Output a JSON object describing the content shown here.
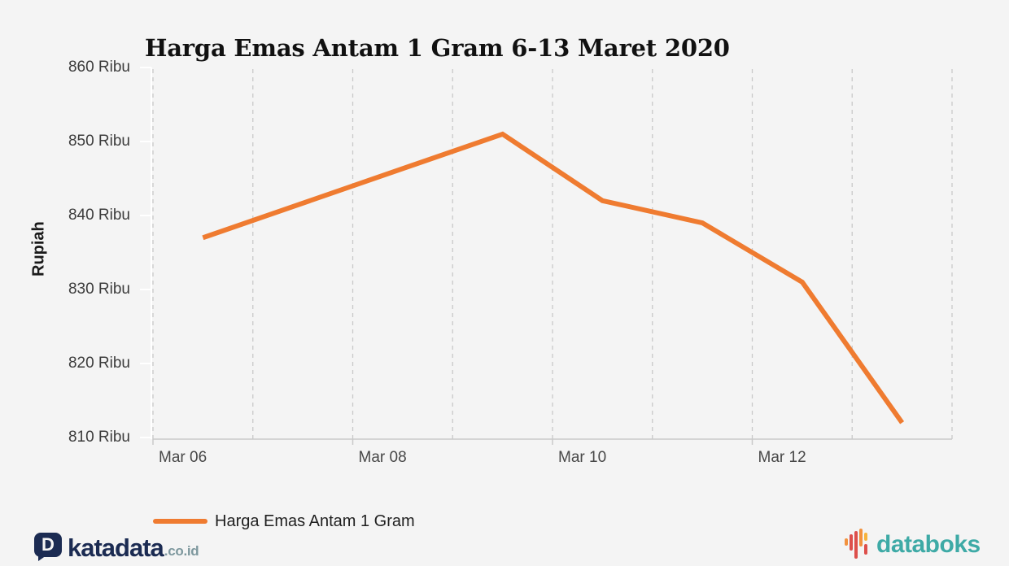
{
  "chart_data": {
    "type": "line",
    "title": "Harga Emas Antam 1 Gram 6-13 Maret 2020",
    "xlabel": "",
    "ylabel": "Rupiah",
    "y_unit": "Ribu",
    "ylim": [
      810,
      860
    ],
    "y_ticks": [
      {
        "value": 860,
        "label": "860 Ribu"
      },
      {
        "value": 850,
        "label": "850 Ribu"
      },
      {
        "value": 840,
        "label": "840 Ribu"
      },
      {
        "value": 830,
        "label": "830 Ribu"
      },
      {
        "value": 820,
        "label": "820 Ribu"
      },
      {
        "value": 810,
        "label": "810 Ribu"
      }
    ],
    "x_tick_labels": [
      "Mar 06",
      "Mar 08",
      "Mar 10",
      "Mar 12"
    ],
    "x_range_days": [
      6,
      13
    ],
    "grid": "vertical dashed gridline per day, no horizontal gridlines",
    "legend_position": "bottom-left",
    "series": [
      {
        "name": "Harga Emas Antam 1 Gram",
        "color": "#EF7B30",
        "points": [
          {
            "x": "Mar 06",
            "day": 6,
            "value": 837
          },
          {
            "x": "Mar 09",
            "day": 9,
            "value": 851
          },
          {
            "x": "Mar 10",
            "day": 10,
            "value": 842
          },
          {
            "x": "Mar 11",
            "day": 11,
            "value": 839
          },
          {
            "x": "Mar 12",
            "day": 12,
            "value": 831
          },
          {
            "x": "Mar 13",
            "day": 13,
            "value": 812
          }
        ],
        "note": "No points on Mar 07-08 (weekend); line runs straight from Mar 06 to Mar 09"
      }
    ]
  },
  "legend": {
    "label": "Harga Emas Antam 1 Gram",
    "swatch_color": "#EF7B30"
  },
  "colors": {
    "background": "#f4f4f4",
    "line": "#EF7B30",
    "gridline": "#c9c9c9",
    "axis_line": "#c9c9c9",
    "axis_tick_white": "#ffffff",
    "axis_text": "#444444"
  },
  "footer": {
    "katadata": {
      "mark_letter": "D",
      "word": "katadata",
      "suffix": ".co.id",
      "navy": "#1B2B52",
      "suffix_color": "#7E989E"
    },
    "databoks": {
      "word": "databoks",
      "teal": "#3EAAA6",
      "bar_colors": [
        "#F2913D",
        "#DD4F4B",
        "#DD4F4B",
        "#F2913D",
        "#F6B33C",
        "#DD4F4B"
      ]
    }
  }
}
